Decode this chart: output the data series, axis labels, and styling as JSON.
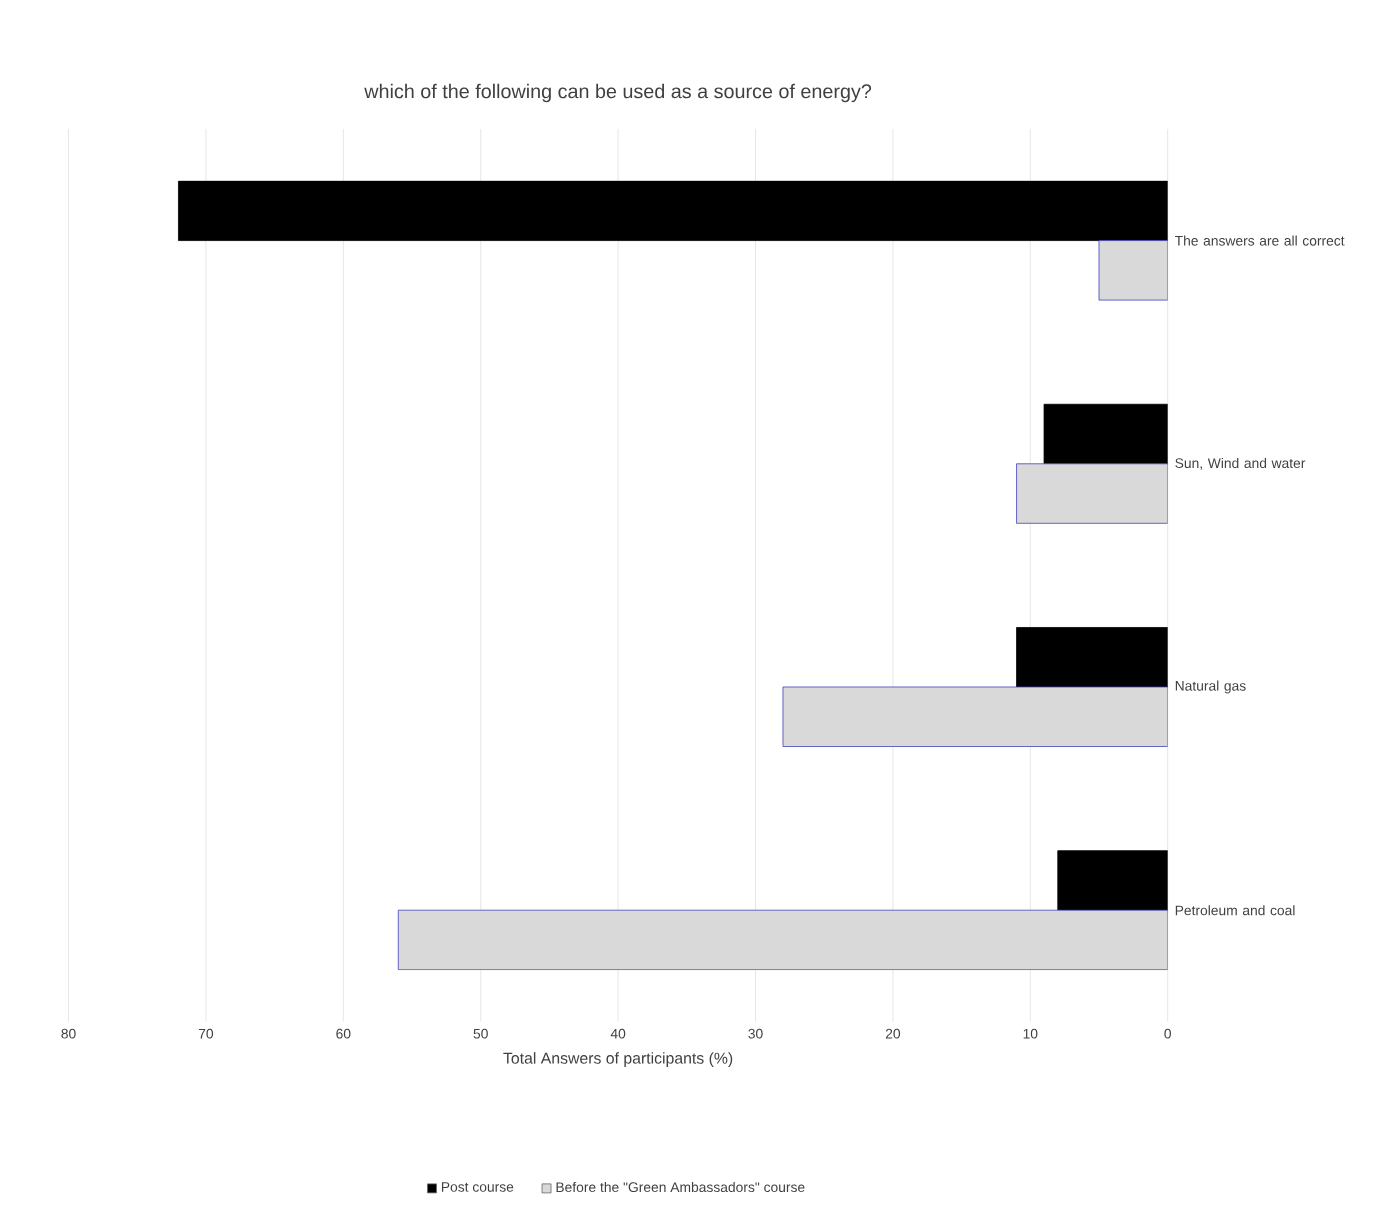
{
  "chart_data": {
    "type": "bar",
    "orientation": "horizontal",
    "title": "which of the following can be used as a source of energy?",
    "xlabel": "Total  Answers of participants  (%)",
    "categories": [
      "The answers are all correct",
      "Sun, Wind and water",
      "Natural gas",
      "Petroleum and coal"
    ],
    "series": [
      {
        "name": "Post course",
        "color": "#000000",
        "values": [
          72,
          9,
          11,
          8
        ]
      },
      {
        "name": "Before the \"Green Ambassadors\" course",
        "color": "#d9d9d9",
        "values": [
          5,
          11,
          28,
          56
        ]
      }
    ],
    "xlim": [
      80,
      0
    ],
    "xticks": [
      80,
      70,
      60,
      50,
      40,
      30,
      20,
      10,
      0
    ],
    "grid": "x",
    "legend": "bottom"
  }
}
